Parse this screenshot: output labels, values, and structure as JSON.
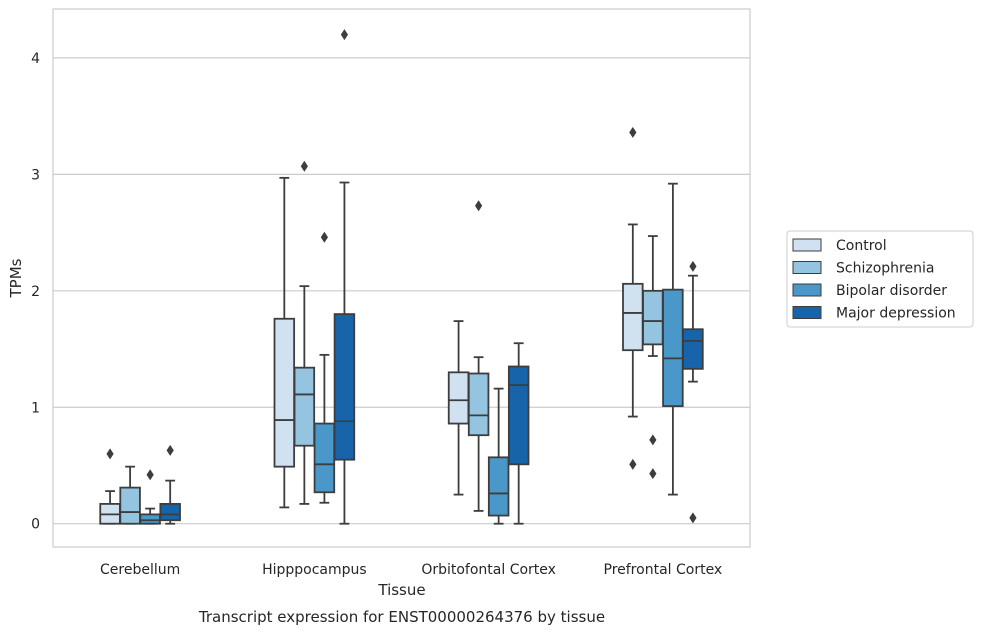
{
  "chart_data": {
    "type": "box",
    "xlabel": "Tissue",
    "ylabel": "TPMs",
    "caption": "Transcript expression for ENST00000264376 by tissue",
    "ylim": [
      -0.2,
      4.42
    ],
    "yticks": [
      "0",
      "1",
      "2",
      "3",
      "4"
    ],
    "ytick_values": [
      0,
      1,
      2,
      3,
      4
    ],
    "grid": "horizontal",
    "legend_position": "right",
    "categories": [
      "Cerebellum",
      "Hipppocampus",
      "Orbitofontal Cortex",
      "Prefrontal Cortex"
    ],
    "series": [
      {
        "name": "Control",
        "color": "#d0e1f2",
        "boxes": [
          {
            "q1": 0.0,
            "median": 0.08,
            "q3": 0.17,
            "whisker_low": 0.0,
            "whisker_high": 0.28,
            "outliers": [
              0.6
            ]
          },
          {
            "q1": 0.49,
            "median": 0.89,
            "q3": 1.76,
            "whisker_low": 0.14,
            "whisker_high": 2.97,
            "outliers": []
          },
          {
            "q1": 0.86,
            "median": 1.06,
            "q3": 1.3,
            "whisker_low": 0.25,
            "whisker_high": 1.74,
            "outliers": []
          },
          {
            "q1": 1.49,
            "median": 1.81,
            "q3": 2.06,
            "whisker_low": 0.92,
            "whisker_high": 2.57,
            "outliers": [
              3.36,
              0.51
            ]
          }
        ]
      },
      {
        "name": "Schizophrenia",
        "color": "#94c4df",
        "boxes": [
          {
            "q1": 0.0,
            "median": 0.1,
            "q3": 0.31,
            "whisker_low": 0.0,
            "whisker_high": 0.49,
            "outliers": []
          },
          {
            "q1": 0.67,
            "median": 1.11,
            "q3": 1.34,
            "whisker_low": 0.17,
            "whisker_high": 2.04,
            "outliers": [
              3.07
            ]
          },
          {
            "q1": 0.76,
            "median": 0.93,
            "q3": 1.29,
            "whisker_low": 0.11,
            "whisker_high": 1.43,
            "outliers": [
              2.73
            ]
          },
          {
            "q1": 1.54,
            "median": 1.74,
            "q3": 2.0,
            "whisker_low": 1.44,
            "whisker_high": 2.47,
            "outliers": [
              0.72,
              0.43
            ]
          }
        ]
      },
      {
        "name": "Bipolar disorder",
        "color": "#4a98c9",
        "boxes": [
          {
            "q1": 0.0,
            "median": 0.03,
            "q3": 0.08,
            "whisker_low": 0.0,
            "whisker_high": 0.13,
            "outliers": [
              0.42
            ]
          },
          {
            "q1": 0.27,
            "median": 0.51,
            "q3": 0.86,
            "whisker_low": 0.18,
            "whisker_high": 1.45,
            "outliers": [
              2.46
            ]
          },
          {
            "q1": 0.07,
            "median": 0.26,
            "q3": 0.57,
            "whisker_low": 0.0,
            "whisker_high": 1.16,
            "outliers": []
          },
          {
            "q1": 1.01,
            "median": 1.42,
            "q3": 2.01,
            "whisker_low": 0.25,
            "whisker_high": 2.92,
            "outliers": []
          }
        ]
      },
      {
        "name": "Major depression",
        "color": "#1764ab",
        "boxes": [
          {
            "q1": 0.03,
            "median": 0.08,
            "q3": 0.17,
            "whisker_low": 0.0,
            "whisker_high": 0.37,
            "outliers": [
              0.63
            ]
          },
          {
            "q1": 0.55,
            "median": 0.88,
            "q3": 1.8,
            "whisker_low": 0.0,
            "whisker_high": 2.93,
            "outliers": [
              4.2
            ]
          },
          {
            "q1": 0.51,
            "median": 1.19,
            "q3": 1.35,
            "whisker_low": 0.0,
            "whisker_high": 1.55,
            "outliers": []
          },
          {
            "q1": 1.33,
            "median": 1.57,
            "q3": 1.67,
            "whisker_low": 1.22,
            "whisker_high": 2.13,
            "outliers": [
              2.21,
              0.05
            ]
          }
        ]
      }
    ]
  }
}
